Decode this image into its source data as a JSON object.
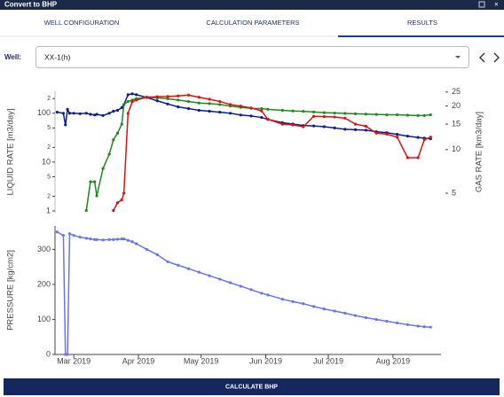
{
  "window": {
    "title": "Convert to BHP"
  },
  "tabs": [
    "WELL CONFIGURATION",
    "CALCULATION PARAMETERS",
    "RESULTS"
  ],
  "well": {
    "label": "Well:",
    "value": "XX-1(h)"
  },
  "button": "CALCULATE BHP",
  "chart_data": [
    {
      "type": "line",
      "ylabel": "LIQUID RATE [m3/day]",
      "y2label": "GAS RATE [km3/day]",
      "ylog": true,
      "y2log": true,
      "xlim": [
        51,
        236
      ],
      "ylim": [
        0.92,
        282
      ],
      "yticks": [
        1,
        2,
        5,
        10,
        {
          "value": 20,
          "label": "2"
        },
        {
          "value": 50,
          "label": "5"
        },
        100,
        {
          "value": 200,
          "label": "2"
        }
      ],
      "y2lim": [
        3.67,
        25.3
      ],
      "y2ticks": [
        5,
        10,
        15,
        20,
        25
      ],
      "x": [
        52,
        55,
        56,
        57,
        58,
        60,
        63,
        66,
        68,
        70,
        71,
        74,
        77,
        79,
        81,
        83,
        84,
        86,
        88,
        90,
        95,
        100,
        105,
        110,
        115,
        120,
        125,
        130,
        135,
        140,
        145,
        150,
        153,
        160,
        165,
        170,
        175,
        180,
        185,
        190,
        195,
        200,
        205,
        210,
        215,
        220,
        225,
        228,
        231
      ],
      "series": [
        {
          "color": "#0b1f8c",
          "values": [
            105,
            100,
            58,
            120,
            100,
            100,
            98,
            100,
            95,
            92,
            95,
            90,
            100,
            110,
            115,
            130,
            150,
            240,
            250,
            240,
            210,
            180,
            155,
            135,
            125,
            115,
            110,
            105,
            100,
            92,
            88,
            82,
            75,
            64,
            60,
            56,
            55,
            53,
            50,
            47,
            46,
            45,
            42,
            40,
            37,
            34,
            32,
            31,
            30
          ]
        },
        {
          "color": "#1e8a1e",
          "axis": "y2",
          "values": [
            null,
            null,
            null,
            null,
            null,
            null,
            null,
            3.8,
            6,
            6,
            4.8,
            7.4,
            9.3,
            11.7,
            13,
            15,
            20.5,
            21.5,
            22,
            22.5,
            23,
            22.8,
            22.5,
            22,
            21.5,
            21,
            20.8,
            20.5,
            20,
            19.6,
            19.3,
            19.2,
            19,
            18.7,
            18.5,
            18.4,
            18.2,
            18,
            17.9,
            17.8,
            17.7,
            17.6,
            17.5,
            17.4,
            17.4,
            17.3,
            17.2,
            17.2,
            17.4
          ]
        },
        {
          "color": "#e01010",
          "axis": "y2",
          "values": [
            null,
            null,
            null,
            null,
            null,
            null,
            null,
            null,
            null,
            null,
            null,
            null,
            null,
            3.8,
            4.3,
            4.5,
            5,
            17.8,
            21.4,
            22,
            23,
            23.2,
            23.3,
            23.5,
            23.8,
            23,
            22.3,
            21.5,
            20.5,
            20,
            19.4,
            18.5,
            16.2,
            15,
            14.8,
            14.4,
            17,
            16.9,
            16.8,
            16.5,
            15,
            14.5,
            13,
            12.8,
            12.2,
            8.8,
            8.8,
            11.7,
            12.2
          ]
        }
      ]
    },
    {
      "type": "line",
      "ylabel": "PRESSURE [kg/cm2]",
      "xlim": [
        51,
        236
      ],
      "xticks": [
        {
          "value": 60,
          "label": "Mar 2019"
        },
        {
          "value": 91,
          "label": "Apr 2019"
        },
        {
          "value": 121,
          "label": "May 2019"
        },
        {
          "value": 152,
          "label": "Jun 2019"
        },
        {
          "value": 182,
          "label": "Jul 2019"
        },
        {
          "value": 213,
          "label": "Aug 2019"
        }
      ],
      "ylim": [
        0,
        367
      ],
      "yticks": [
        0,
        100,
        200,
        300
      ],
      "x": [
        52,
        55,
        56,
        57,
        58,
        60,
        63,
        66,
        68,
        70,
        71,
        74,
        77,
        79,
        81,
        83,
        84,
        86,
        88,
        90,
        95,
        100,
        105,
        110,
        115,
        120,
        125,
        130,
        135,
        140,
        145,
        150,
        153,
        160,
        165,
        170,
        175,
        180,
        185,
        190,
        195,
        200,
        205,
        210,
        215,
        220,
        225,
        228,
        231
      ],
      "series": [
        {
          "color": "#6a74f0",
          "values": [
            350,
            340,
            0,
            0,
            345,
            340,
            335,
            332,
            330,
            328,
            328,
            327,
            328,
            328,
            329,
            330,
            330,
            326,
            322,
            316,
            300,
            285,
            265,
            255,
            245,
            235,
            225,
            215,
            205,
            195,
            185,
            175,
            170,
            158,
            151,
            145,
            137,
            130,
            124,
            118,
            111,
            105,
            100,
            95,
            90,
            85,
            81,
            79,
            78
          ]
        }
      ]
    }
  ]
}
